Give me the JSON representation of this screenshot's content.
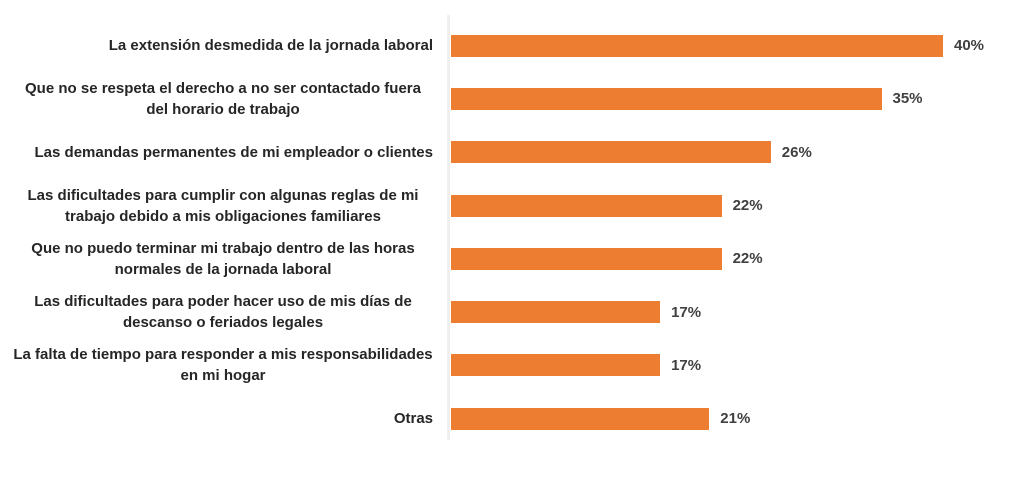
{
  "chart_data": {
    "type": "bar",
    "orientation": "horizontal",
    "title": "",
    "xlabel": "",
    "ylabel": "",
    "grid": false,
    "legend": false,
    "xlim": [
      0,
      46.5
    ],
    "bar_color": "#ED7D31",
    "category_label_color": "#262626",
    "value_label_color": "#404040",
    "axis_line_color": "#EFEFED",
    "categories": [
      "La extensión desmedida de la jornada laboral",
      "Que no se respeta el derecho a no ser contactado fuera del horario de trabajo",
      "Las demandas permanentes de mi empleador o clientes",
      "Las dificultades para cumplir con algunas reglas de mi trabajo debido a mis obligaciones familiares",
      "Que no puedo terminar mi trabajo dentro de las horas normales de la jornada laboral",
      "Las dificultades para poder hacer uso de mis días de descanso o feriados legales",
      "La falta de tiempo para responder a mis responsabilidades en mi hogar",
      "Otras"
    ],
    "values": [
      40,
      35,
      26,
      22,
      22,
      17,
      17,
      21
    ],
    "value_labels": [
      "40%",
      "35%",
      "26%",
      "22%",
      "22%",
      "17%",
      "17%",
      "21%"
    ]
  }
}
